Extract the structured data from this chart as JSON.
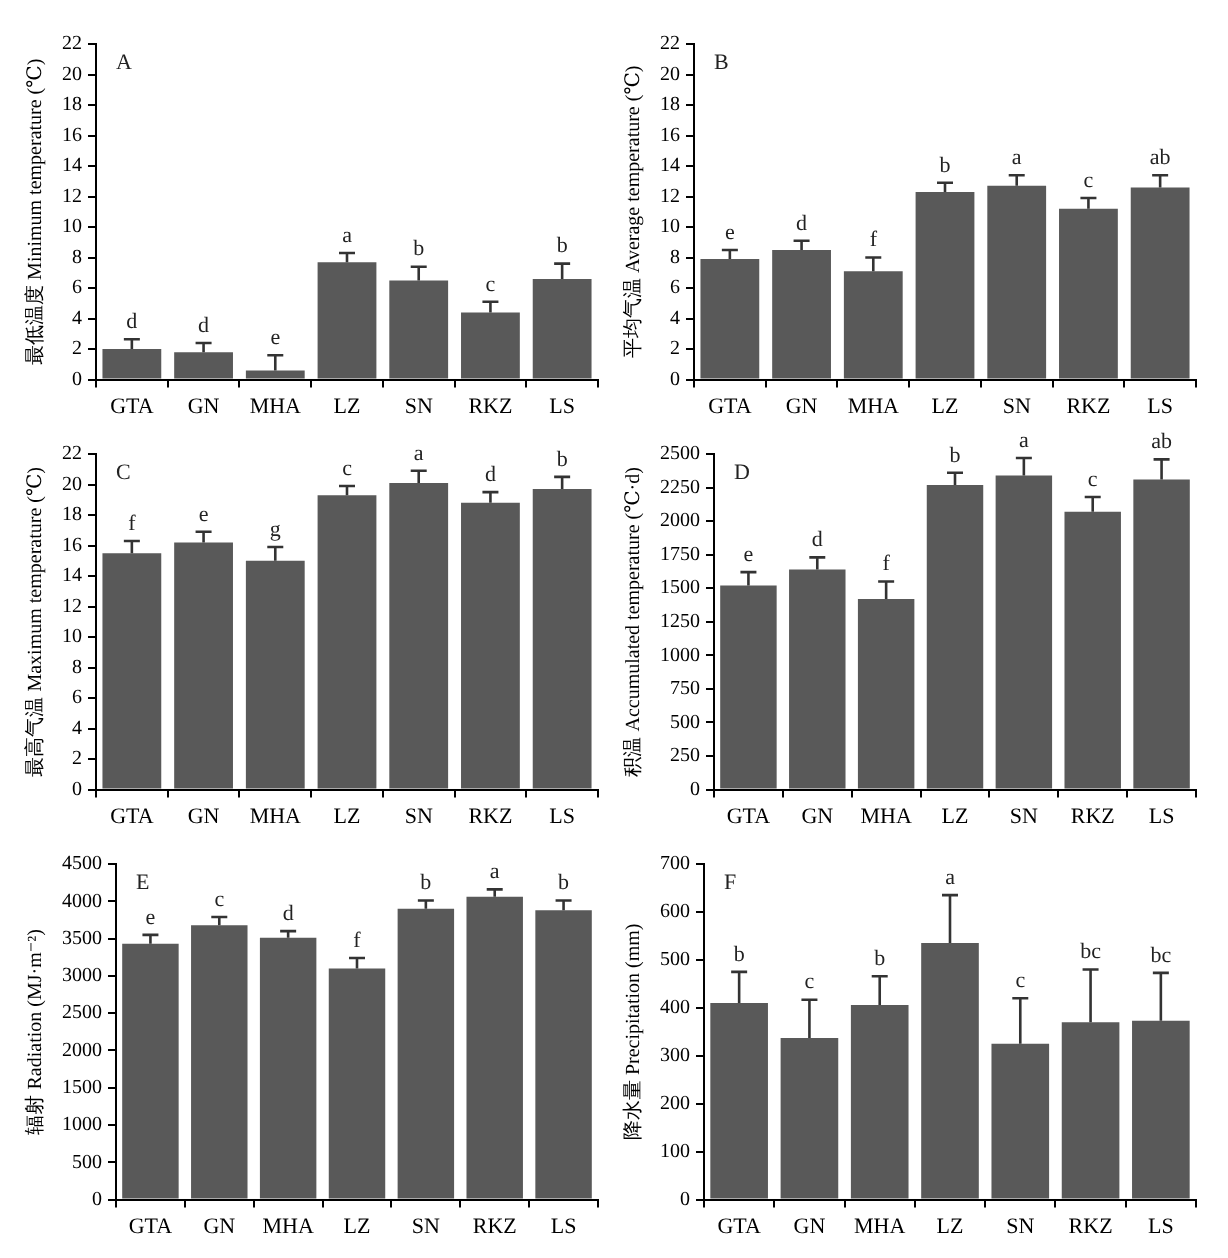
{
  "chart_data": [
    {
      "type": "bar",
      "categories": [
        "GTA",
        "GN",
        "MHA",
        "LZ",
        "SN",
        "RKZ",
        "LS"
      ],
      "values": [
        2.0,
        1.8,
        0.6,
        7.7,
        6.5,
        4.4,
        6.6
      ],
      "color": "#595959",
      "errors": [
        [
          2.0,
          2.65
        ],
        [
          1.8,
          2.4
        ],
        [
          0.6,
          1.6
        ],
        [
          7.7,
          8.3
        ],
        [
          6.5,
          7.4
        ],
        [
          4.4,
          5.1
        ],
        [
          6.6,
          7.6
        ]
      ],
      "ylabel": "最低温度 Minimum temperature (℃)",
      "ylim": [
        0,
        22
      ],
      "yticks": [
        0,
        2,
        4,
        6,
        8,
        10,
        12,
        14,
        16,
        18,
        20,
        22
      ],
      "annotations": [
        "A",
        {
          "text": "d",
          "x": "GTA",
          "y": 2.65
        },
        {
          "text": "d",
          "x": "GN",
          "y": 2.4
        },
        {
          "text": "e",
          "x": "MHA",
          "y": 1.6
        },
        {
          "text": "a",
          "x": "LZ",
          "y": 8.3
        },
        {
          "text": "b",
          "x": "SN",
          "y": 7.4
        },
        {
          "text": "c",
          "x": "RKZ",
          "y": 5.1
        },
        {
          "text": "b",
          "x": "LS",
          "y": 7.6
        }
      ]
    },
    {
      "type": "bar",
      "categories": [
        "GTA",
        "GN",
        "MHA",
        "LZ",
        "SN",
        "RKZ",
        "LS"
      ],
      "values": [
        7.9,
        8.5,
        7.1,
        12.3,
        12.7,
        11.2,
        12.6
      ],
      "color": "#595959",
      "errors": [
        [
          7.9,
          8.5
        ],
        [
          8.5,
          9.1
        ],
        [
          7.1,
          8.0
        ],
        [
          12.3,
          12.9
        ],
        [
          12.7,
          13.4
        ],
        [
          11.2,
          11.9
        ],
        [
          12.6,
          13.4
        ]
      ],
      "ylabel": "平均气温 Average temperature (℃)",
      "ylim": [
        0,
        22
      ],
      "yticks": [
        0,
        2,
        4,
        6,
        8,
        10,
        12,
        14,
        16,
        18,
        20,
        22
      ],
      "annotations": [
        "B",
        {
          "text": "e",
          "x": "GTA",
          "y": 8.5
        },
        {
          "text": "d",
          "x": "GN",
          "y": 9.1
        },
        {
          "text": "f",
          "x": "MHA",
          "y": 8.0
        },
        {
          "text": "b",
          "x": "LZ",
          "y": 12.9
        },
        {
          "text": "a",
          "x": "SN",
          "y": 13.4
        },
        {
          "text": "c",
          "x": "RKZ",
          "y": 11.9
        },
        {
          "text": "ab",
          "x": "LS",
          "y": 13.4
        }
      ]
    },
    {
      "type": "bar",
      "categories": [
        "GTA",
        "GN",
        "MHA",
        "LZ",
        "SN",
        "RKZ",
        "LS"
      ],
      "values": [
        15.5,
        16.2,
        15.0,
        19.3,
        20.1,
        18.8,
        19.7
      ],
      "color": "#595959",
      "errors": [
        [
          15.5,
          16.3
        ],
        [
          16.2,
          16.9
        ],
        [
          15.0,
          15.9
        ],
        [
          19.3,
          19.9
        ],
        [
          20.1,
          20.9
        ],
        [
          18.8,
          19.5
        ],
        [
          19.7,
          20.5
        ]
      ],
      "ylabel": "最高气温 Maximum temperature (℃)",
      "ylim": [
        0,
        22
      ],
      "yticks": [
        0,
        2,
        4,
        6,
        8,
        10,
        12,
        14,
        16,
        18,
        20,
        22
      ],
      "annotations": [
        "C",
        {
          "text": "f",
          "x": "GTA",
          "y": 16.3
        },
        {
          "text": "e",
          "x": "GN",
          "y": 16.9
        },
        {
          "text": "g",
          "x": "MHA",
          "y": 15.9
        },
        {
          "text": "c",
          "x": "LZ",
          "y": 19.9
        },
        {
          "text": "a",
          "x": "SN",
          "y": 20.9
        },
        {
          "text": "d",
          "x": "RKZ",
          "y": 19.5
        },
        {
          "text": "b",
          "x": "LS",
          "y": 20.5
        }
      ]
    },
    {
      "type": "bar",
      "categories": [
        "GTA",
        "GN",
        "MHA",
        "LZ",
        "SN",
        "RKZ",
        "LS"
      ],
      "values": [
        1520,
        1640,
        1420,
        2270,
        2340,
        2070,
        2310
      ],
      "color": "#595959",
      "errors": [
        [
          1520,
          1620
        ],
        [
          1640,
          1730
        ],
        [
          1420,
          1550
        ],
        [
          2270,
          2360
        ],
        [
          2340,
          2470
        ],
        [
          2070,
          2180
        ],
        [
          2310,
          2460
        ]
      ],
      "ylabel": "积温 Accumulated temperature (℃·d)",
      "ylim": [
        0,
        2500
      ],
      "yticks": [
        0,
        250,
        500,
        750,
        1000,
        1250,
        1500,
        1750,
        2000,
        2250,
        2500
      ],
      "annotations": [
        "D",
        {
          "text": "e",
          "x": "GTA",
          "y": 1620
        },
        {
          "text": "d",
          "x": "GN",
          "y": 1730
        },
        {
          "text": "f",
          "x": "MHA",
          "y": 1550
        },
        {
          "text": "b",
          "x": "LZ",
          "y": 2360
        },
        {
          "text": "a",
          "x": "SN",
          "y": 2470
        },
        {
          "text": "c",
          "x": "RKZ",
          "y": 2180
        },
        {
          "text": "ab",
          "x": "LS",
          "y": 2460
        }
      ]
    },
    {
      "type": "bar",
      "categories": [
        "GTA",
        "GN",
        "MHA",
        "LZ",
        "SN",
        "RKZ",
        "LS"
      ],
      "values": [
        3430,
        3680,
        3510,
        3100,
        3900,
        4060,
        3880
      ],
      "color": "#595959",
      "errors": [
        [
          3430,
          3550
        ],
        [
          3680,
          3790
        ],
        [
          3510,
          3600
        ],
        [
          3100,
          3240
        ],
        [
          3900,
          4010
        ],
        [
          4060,
          4160
        ],
        [
          3880,
          4010
        ]
      ],
      "ylabel": "辐射 Radiation (MJ·m⁻²)",
      "ylim": [
        0,
        4500
      ],
      "yticks": [
        0,
        500,
        1000,
        1500,
        2000,
        2500,
        3000,
        3500,
        4000,
        4500
      ],
      "annotations": [
        "E",
        {
          "text": "e",
          "x": "GTA",
          "y": 3550
        },
        {
          "text": "c",
          "x": "GN",
          "y": 3790
        },
        {
          "text": "d",
          "x": "MHA",
          "y": 3600
        },
        {
          "text": "f",
          "x": "LZ",
          "y": 3240
        },
        {
          "text": "b",
          "x": "SN",
          "y": 4010
        },
        {
          "text": "a",
          "x": "RKZ",
          "y": 4160
        },
        {
          "text": "b",
          "x": "LS",
          "y": 4010
        }
      ]
    },
    {
      "type": "bar",
      "categories": [
        "GTA",
        "GN",
        "MHA",
        "LZ",
        "SN",
        "RKZ",
        "LS"
      ],
      "values": [
        410,
        337,
        406,
        535,
        325,
        370,
        373
      ],
      "color": "#595959",
      "errors": [
        [
          410,
          475
        ],
        [
          337,
          417
        ],
        [
          406,
          466
        ],
        [
          535,
          635
        ],
        [
          325,
          420
        ],
        [
          370,
          480
        ],
        [
          373,
          473
        ]
      ],
      "ylabel": "降水量 Precipitation (mm)",
      "ylim": [
        0,
        700
      ],
      "yticks": [
        0,
        100,
        200,
        300,
        400,
        500,
        600,
        700
      ],
      "annotations": [
        "F",
        {
          "text": "b",
          "x": "GTA",
          "y": 475
        },
        {
          "text": "c",
          "x": "GN",
          "y": 417
        },
        {
          "text": "b",
          "x": "MHA",
          "y": 466
        },
        {
          "text": "a",
          "x": "LZ",
          "y": 635
        },
        {
          "text": "c",
          "x": "SN",
          "y": 420
        },
        {
          "text": "bc",
          "x": "RKZ",
          "y": 480
        },
        {
          "text": "bc",
          "x": "LS",
          "y": 473
        }
      ]
    }
  ]
}
